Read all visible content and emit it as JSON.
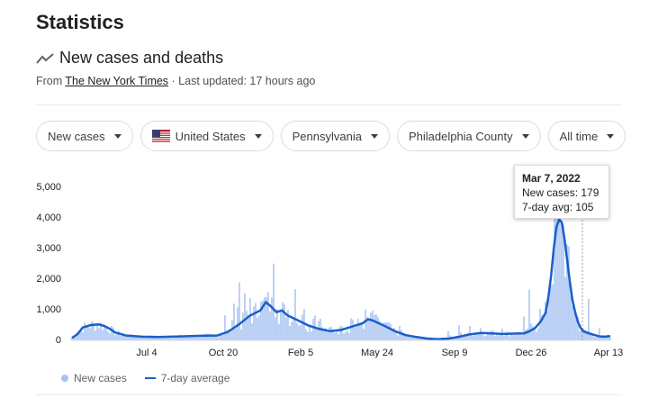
{
  "header": {
    "title": "Statistics",
    "subtitle": "New cases and deaths",
    "source_prefix": "From",
    "source_name": "The New York Times",
    "updated": "· Last updated: 17 hours ago"
  },
  "filters": [
    {
      "label": "New cases",
      "icon": "caret-down-icon"
    },
    {
      "label": "United States",
      "icon": "us-flag-icon"
    },
    {
      "label": "Pennsylvania",
      "icon": "caret-down-icon"
    },
    {
      "label": "Philadelphia County",
      "icon": "caret-down-icon"
    },
    {
      "label": "All time",
      "icon": "caret-down-icon"
    }
  ],
  "tooltip": {
    "date": "Mar 7, 2022",
    "new_cases": "New cases: 179",
    "avg": "7-day avg: 105"
  },
  "legend": {
    "bars": "New cases",
    "line": "7-day average"
  },
  "colors": {
    "bars": "#a6c2f2",
    "line": "#1a5fc8"
  },
  "chart_data": {
    "type": "bar",
    "yticks": [
      "5,000",
      "4,000",
      "3,000",
      "2,000",
      "1,000",
      "0"
    ],
    "ylim": [
      0,
      5000
    ],
    "xticks": [
      "Jul 4",
      "Oct 20",
      "Feb 5",
      "May 24",
      "Sep 9",
      "Dec 26",
      "Apr 13"
    ],
    "series": [
      {
        "name": "New cases",
        "type": "bar"
      },
      {
        "name": "7-day average",
        "type": "line"
      }
    ],
    "avg_points": [
      [
        0,
        80
      ],
      [
        0.01,
        200
      ],
      [
        0.02,
        420
      ],
      [
        0.035,
        500
      ],
      [
        0.05,
        520
      ],
      [
        0.06,
        470
      ],
      [
        0.07,
        380
      ],
      [
        0.08,
        260
      ],
      [
        0.1,
        160
      ],
      [
        0.13,
        120
      ],
      [
        0.16,
        110
      ],
      [
        0.2,
        130
      ],
      [
        0.24,
        150
      ],
      [
        0.27,
        160
      ],
      [
        0.29,
        280
      ],
      [
        0.31,
        520
      ],
      [
        0.33,
        800
      ],
      [
        0.35,
        980
      ],
      [
        0.36,
        1250
      ],
      [
        0.37,
        1100
      ],
      [
        0.38,
        920
      ],
      [
        0.39,
        980
      ],
      [
        0.4,
        820
      ],
      [
        0.42,
        650
      ],
      [
        0.44,
        480
      ],
      [
        0.46,
        370
      ],
      [
        0.48,
        300
      ],
      [
        0.5,
        340
      ],
      [
        0.52,
        450
      ],
      [
        0.54,
        560
      ],
      [
        0.55,
        690
      ],
      [
        0.56,
        640
      ],
      [
        0.58,
        480
      ],
      [
        0.6,
        300
      ],
      [
        0.62,
        170
      ],
      [
        0.64,
        110
      ],
      [
        0.66,
        60
      ],
      [
        0.68,
        40
      ],
      [
        0.7,
        60
      ],
      [
        0.72,
        120
      ],
      [
        0.74,
        200
      ],
      [
        0.76,
        240
      ],
      [
        0.78,
        230
      ],
      [
        0.8,
        210
      ],
      [
        0.82,
        220
      ],
      [
        0.84,
        230
      ],
      [
        0.85,
        300
      ],
      [
        0.86,
        400
      ],
      [
        0.87,
        600
      ],
      [
        0.88,
        900
      ],
      [
        0.885,
        1400
      ],
      [
        0.89,
        2100
      ],
      [
        0.895,
        3000
      ],
      [
        0.9,
        3700
      ],
      [
        0.905,
        3950
      ],
      [
        0.91,
        3850
      ],
      [
        0.915,
        3300
      ],
      [
        0.92,
        2600
      ],
      [
        0.925,
        1900
      ],
      [
        0.93,
        1300
      ],
      [
        0.935,
        900
      ],
      [
        0.94,
        600
      ],
      [
        0.945,
        400
      ],
      [
        0.95,
        300
      ],
      [
        0.96,
        230
      ],
      [
        0.97,
        180
      ],
      [
        0.98,
        130
      ],
      [
        0.99,
        120
      ],
      [
        1.0,
        140
      ]
    ],
    "spikes": [
      [
        0.04,
        600
      ],
      [
        0.06,
        520
      ],
      [
        0.285,
        1000
      ],
      [
        0.3,
        1600
      ],
      [
        0.31,
        2550
      ],
      [
        0.32,
        2100
      ],
      [
        0.33,
        1900
      ],
      [
        0.35,
        1800
      ],
      [
        0.37,
        2000
      ],
      [
        0.375,
        2800
      ],
      [
        0.38,
        1500
      ],
      [
        0.4,
        1500
      ],
      [
        0.415,
        1800
      ],
      [
        0.43,
        1600
      ],
      [
        0.45,
        1300
      ],
      [
        0.46,
        1150
      ],
      [
        0.48,
        750
      ],
      [
        0.5,
        800
      ],
      [
        0.52,
        1200
      ],
      [
        0.545,
        1050
      ],
      [
        0.56,
        1550
      ],
      [
        0.57,
        1200
      ],
      [
        0.59,
        900
      ],
      [
        0.61,
        700
      ],
      [
        0.7,
        400
      ],
      [
        0.72,
        650
      ],
      [
        0.74,
        600
      ],
      [
        0.76,
        500
      ],
      [
        0.78,
        400
      ],
      [
        0.8,
        450
      ],
      [
        0.84,
        900
      ],
      [
        0.85,
        1900
      ],
      [
        0.87,
        1150
      ],
      [
        0.89,
        2000
      ],
      [
        0.9,
        4800
      ],
      [
        0.91,
        4200
      ],
      [
        0.925,
        2000
      ],
      [
        0.94,
        800
      ],
      [
        0.96,
        1400
      ],
      [
        0.98,
        400
      ]
    ]
  }
}
